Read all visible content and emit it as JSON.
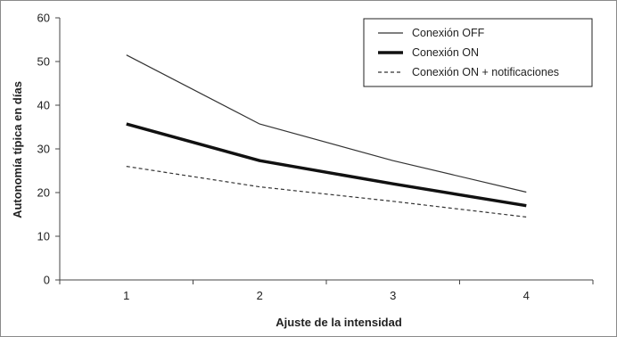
{
  "chart_data": {
    "type": "line",
    "title": "",
    "xlabel": "Ajuste de la intensidad",
    "ylabel": "Autonomía típica en días",
    "x": [
      1,
      2,
      3,
      4
    ],
    "xticks": [
      "1",
      "2",
      "3",
      "4"
    ],
    "ylim": [
      0,
      60
    ],
    "yticks": [
      0,
      10,
      20,
      30,
      40,
      50,
      60
    ],
    "grid": false,
    "legend_position": "top-right",
    "series": [
      {
        "name": "Conexión OFF",
        "values": [
          51.5,
          35.7,
          27.3,
          20.1
        ],
        "color": "#333333",
        "style": "thin"
      },
      {
        "name": "Conexión ON",
        "values": [
          35.7,
          27.3,
          22.0,
          17.0
        ],
        "color": "#111111",
        "style": "thick"
      },
      {
        "name": "Conexión ON + notificaciones",
        "values": [
          26.0,
          21.3,
          18.0,
          14.4
        ],
        "color": "#333333",
        "style": "dashed"
      }
    ]
  }
}
